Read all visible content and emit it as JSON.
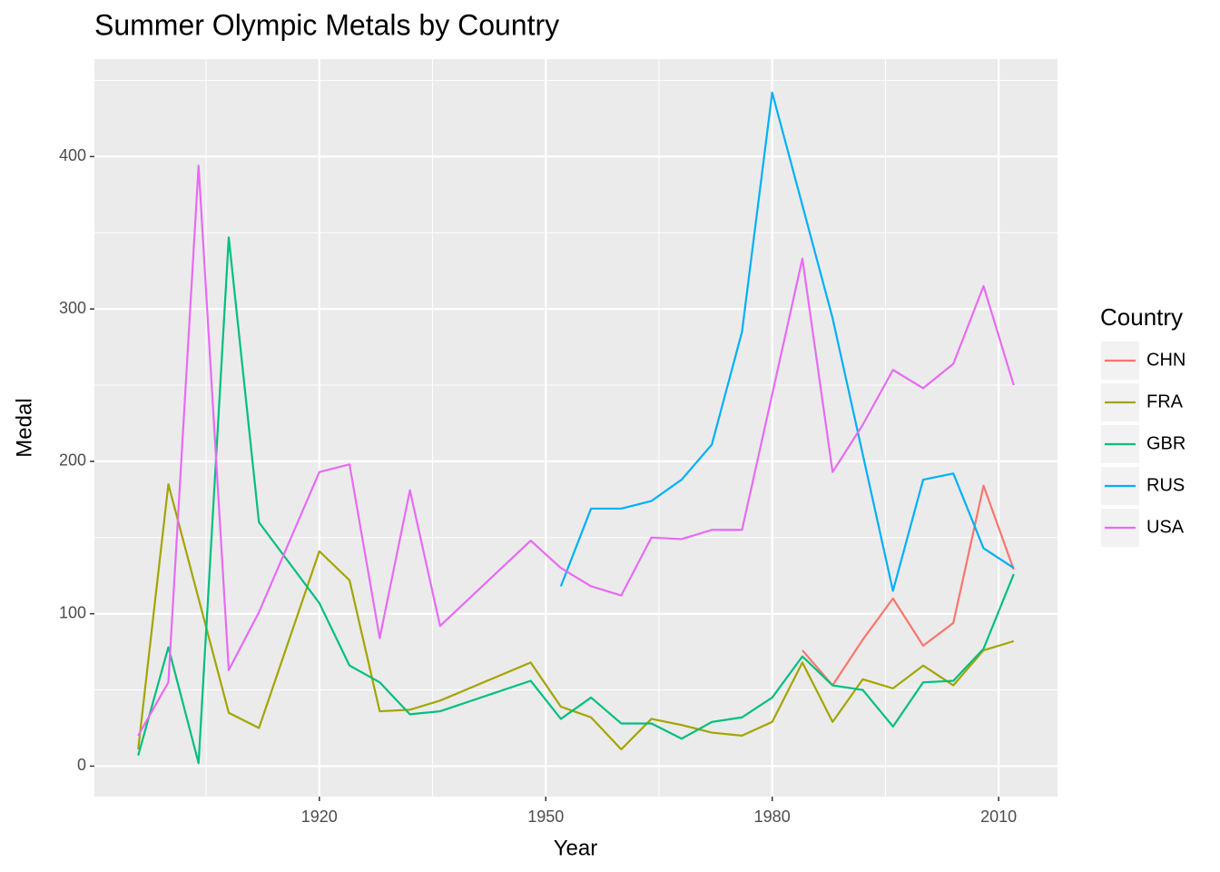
{
  "chart_data": {
    "type": "line",
    "title": "Summer Olympic Metals by Country",
    "x_label": "Year",
    "y_label": "Medal",
    "legend_title": "Country",
    "legend_position": "right",
    "grid": true,
    "xlim": [
      1890.2,
      2017.8
    ],
    "xticks": [
      1920,
      1950,
      1980,
      2010
    ],
    "x_minor_ticks": [
      1905,
      1935,
      1965,
      1995
    ],
    "ylim": [
      -20,
      464
    ],
    "yticks": [
      0,
      100,
      200,
      300,
      400
    ],
    "y_minor_ticks": [
      50,
      150,
      250,
      350,
      450
    ],
    "series": [
      {
        "name": "CHN",
        "color": "#F8766D",
        "x": [
          1984,
          1988,
          1992,
          1996,
          2000,
          2004,
          2008,
          2012
        ],
        "values": [
          76,
          53,
          83,
          110,
          79,
          94,
          184,
          129
        ]
      },
      {
        "name": "FRA",
        "color": "#A3A500",
        "x": [
          1896,
          1900,
          1908,
          1912,
          1920,
          1924,
          1928,
          1932,
          1936,
          1948,
          1952,
          1956,
          1960,
          1964,
          1968,
          1972,
          1976,
          1980,
          1984,
          1988,
          1992,
          1996,
          2000,
          2004,
          2008,
          2012
        ],
        "values": [
          11,
          185,
          35,
          25,
          141,
          122,
          36,
          37,
          43,
          68,
          39,
          32,
          11,
          31,
          27,
          22,
          20,
          29,
          68,
          29,
          57,
          51,
          66,
          53,
          76,
          82
        ]
      },
      {
        "name": "GBR",
        "color": "#00BF7D",
        "x": [
          1896,
          1900,
          1904,
          1908,
          1912,
          1920,
          1924,
          1928,
          1932,
          1936,
          1948,
          1952,
          1956,
          1960,
          1964,
          1968,
          1972,
          1976,
          1980,
          1984,
          1988,
          1992,
          1996,
          2000,
          2004,
          2008,
          2012
        ],
        "values": [
          7,
          78,
          2,
          347,
          160,
          107,
          66,
          55,
          34,
          36,
          56,
          31,
          45,
          28,
          28,
          18,
          29,
          32,
          45,
          72,
          53,
          50,
          26,
          55,
          56,
          77,
          126
        ]
      },
      {
        "name": "RUS",
        "color": "#00B0F6",
        "x": [
          1952,
          1956,
          1960,
          1964,
          1968,
          1972,
          1976,
          1980,
          1988,
          1996,
          2000,
          2004,
          2008,
          2012
        ],
        "values": [
          118,
          169,
          169,
          174,
          188,
          211,
          285,
          442,
          294,
          115,
          188,
          192,
          143,
          130
        ]
      },
      {
        "name": "USA",
        "color": "#E76BF3",
        "x": [
          1896,
          1900,
          1904,
          1908,
          1912,
          1920,
          1924,
          1928,
          1932,
          1936,
          1948,
          1952,
          1956,
          1960,
          1964,
          1968,
          1972,
          1976,
          1984,
          1988,
          1992,
          1996,
          2000,
          2004,
          2008,
          2012
        ],
        "values": [
          20,
          55,
          394,
          63,
          101,
          193,
          198,
          84,
          181,
          92,
          148,
          130,
          118,
          112,
          150,
          149,
          155,
          155,
          333,
          193,
          224,
          260,
          248,
          264,
          315,
          250
        ]
      }
    ]
  }
}
